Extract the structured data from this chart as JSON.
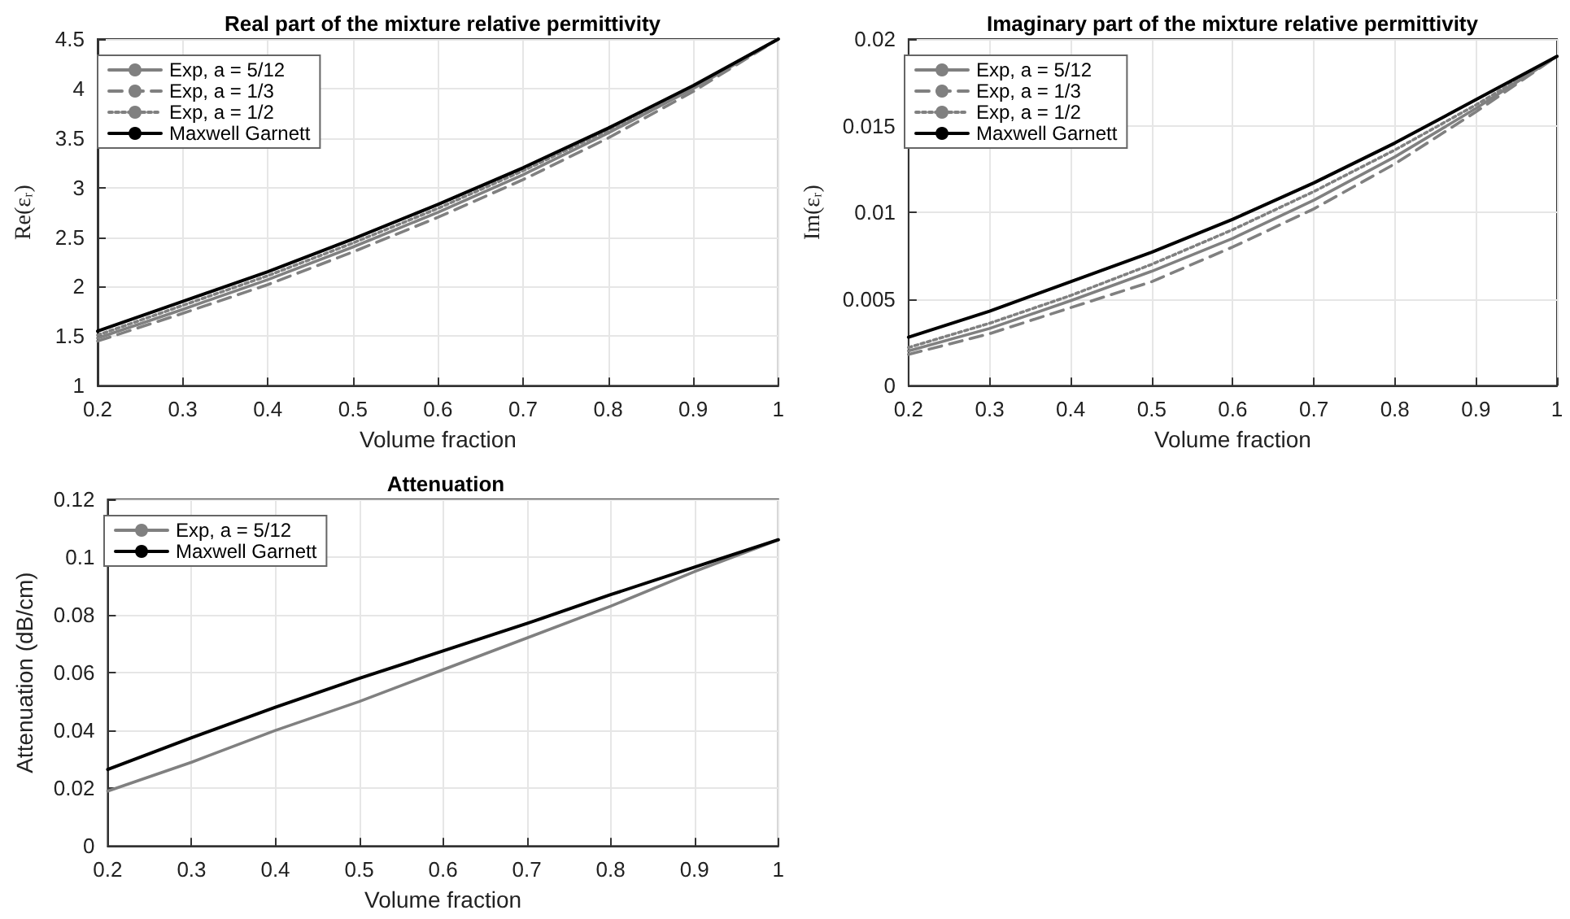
{
  "chart_data": [
    {
      "type": "line",
      "title": "Real part of the mixture relative permittivity",
      "xlabel": "Volume fraction",
      "ylabel": "Re(εᵣ)",
      "x": [
        0.2,
        0.3,
        0.4,
        0.5,
        0.6,
        0.7,
        0.8,
        0.9,
        1.0
      ],
      "xlim": [
        0.2,
        1
      ],
      "xticks": [
        0.2,
        0.3,
        0.4,
        0.5,
        0.6,
        0.7,
        0.8,
        0.9,
        1
      ],
      "ylim": [
        1,
        4.5
      ],
      "yticks": [
        1,
        1.5,
        2,
        2.5,
        3,
        3.5,
        4,
        4.5
      ],
      "grid": true,
      "legend": "top left",
      "series": [
        {
          "name": "Exp, a = 5/12",
          "color": "#808080",
          "line_style": "solid",
          "values": [
            1.48,
            1.77,
            2.07,
            2.4,
            2.75,
            3.13,
            3.55,
            4.0,
            4.5
          ]
        },
        {
          "name": "Exp, a = 1/3",
          "color": "#808080",
          "line_style": "dashed",
          "values": [
            1.45,
            1.73,
            2.02,
            2.35,
            2.7,
            3.08,
            3.5,
            3.97,
            4.5
          ]
        },
        {
          "name": "Exp, a = 1/2",
          "color": "#808080",
          "line_style": "dotted",
          "values": [
            1.51,
            1.81,
            2.11,
            2.44,
            2.79,
            3.17,
            3.58,
            4.02,
            4.5
          ]
        },
        {
          "name": "Maxwell Garnett",
          "color": "#000000",
          "line_style": "solid",
          "values": [
            1.55,
            1.85,
            2.15,
            2.48,
            2.83,
            3.2,
            3.6,
            4.03,
            4.5
          ]
        }
      ]
    },
    {
      "type": "line",
      "title": "Imaginary part of the mixture relative permittivity",
      "xlabel": "Volume fraction",
      "ylabel": "Im(εᵣ)",
      "x": [
        0.2,
        0.3,
        0.4,
        0.5,
        0.6,
        0.7,
        0.8,
        0.9,
        1.0
      ],
      "xlim": [
        0.2,
        1
      ],
      "xticks": [
        0.2,
        0.3,
        0.4,
        0.5,
        0.6,
        0.7,
        0.8,
        0.9,
        1
      ],
      "ylim": [
        0,
        0.02
      ],
      "yticks": [
        0,
        0.005,
        0.01,
        0.015,
        0.02
      ],
      "grid": true,
      "legend": "top left",
      "series": [
        {
          "name": "Exp, a = 5/12",
          "color": "#808080",
          "line_style": "solid",
          "values": [
            0.002,
            0.0033,
            0.0049,
            0.0066,
            0.0085,
            0.0107,
            0.0132,
            0.016,
            0.019
          ]
        },
        {
          "name": "Exp, a = 1/3",
          "color": "#808080",
          "line_style": "dashed",
          "values": [
            0.0018,
            0.003,
            0.0045,
            0.006,
            0.008,
            0.0102,
            0.0128,
            0.0158,
            0.019
          ]
        },
        {
          "name": "Exp, a = 1/2",
          "color": "#808080",
          "line_style": "dotted",
          "values": [
            0.0022,
            0.0036,
            0.0052,
            0.007,
            0.009,
            0.0112,
            0.0136,
            0.0162,
            0.019
          ]
        },
        {
          "name": "Maxwell Garnett",
          "color": "#000000",
          "line_style": "solid",
          "values": [
            0.0028,
            0.0043,
            0.006,
            0.0077,
            0.0096,
            0.0117,
            0.014,
            0.0165,
            0.019
          ]
        }
      ]
    },
    {
      "type": "line",
      "title": "Attenuation",
      "xlabel": "Volume fraction",
      "ylabel": "Attenuation (dB/cm)",
      "x": [
        0.2,
        0.3,
        0.4,
        0.5,
        0.6,
        0.7,
        0.8,
        0.9,
        1.0
      ],
      "xlim": [
        0.2,
        1
      ],
      "xticks": [
        0.2,
        0.3,
        0.4,
        0.5,
        0.6,
        0.7,
        0.8,
        0.9,
        1
      ],
      "ylim": [
        0,
        0.12
      ],
      "yticks": [
        0,
        0.02,
        0.04,
        0.06,
        0.08,
        0.1,
        0.12
      ],
      "grid": true,
      "legend": "top left",
      "series": [
        {
          "name": "Exp, a = 5/12",
          "color": "#808080",
          "line_style": "solid",
          "values": [
            0.019,
            0.029,
            0.04,
            0.05,
            0.061,
            0.072,
            0.083,
            0.095,
            0.106
          ]
        },
        {
          "name": "Maxwell Garnett",
          "color": "#000000",
          "line_style": "solid",
          "values": [
            0.0265,
            0.0375,
            0.048,
            0.058,
            0.0675,
            0.077,
            0.087,
            0.0965,
            0.106
          ]
        }
      ]
    }
  ]
}
